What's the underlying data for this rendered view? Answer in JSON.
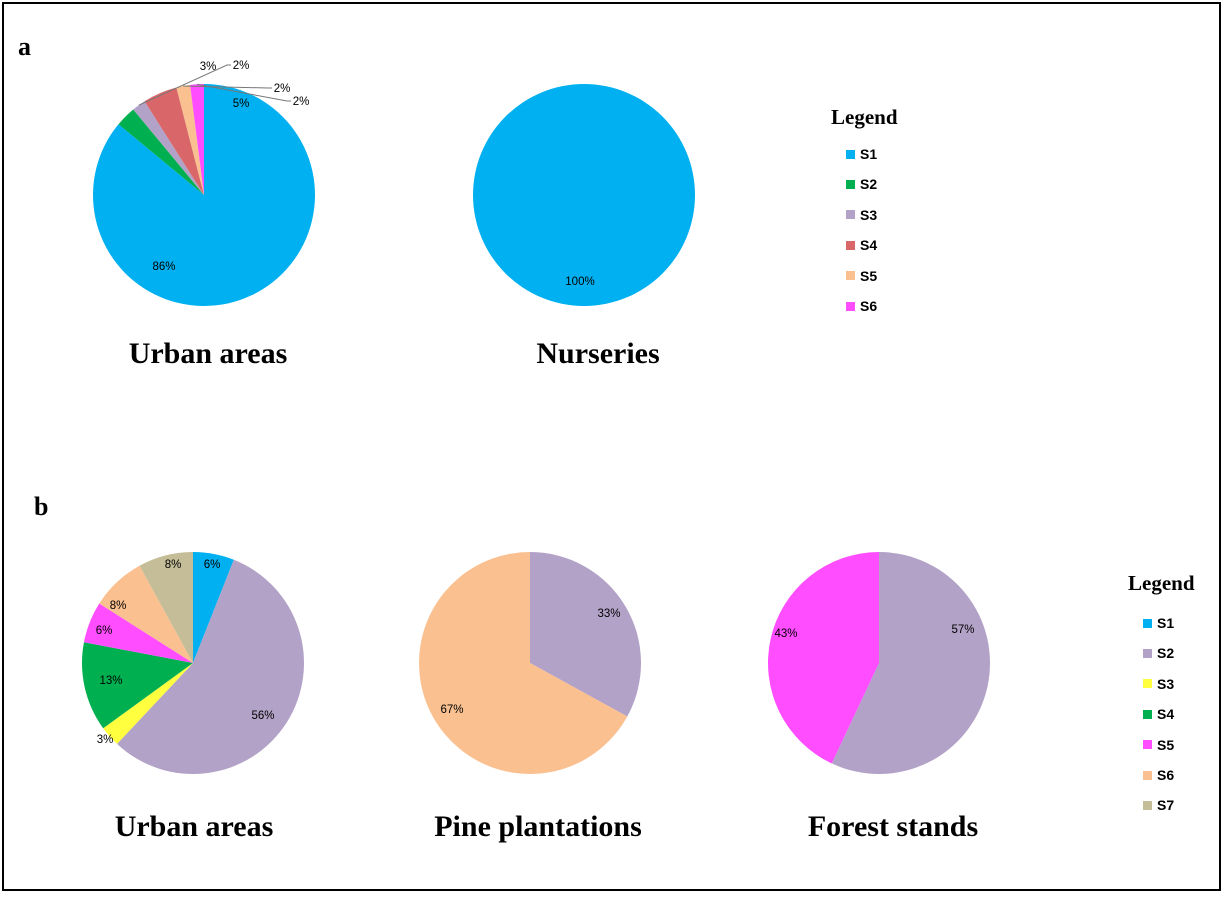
{
  "panels": [
    {
      "letter": "a"
    },
    {
      "letter": "b"
    }
  ],
  "legends": [
    {
      "title": "Legend",
      "items": [
        "S1",
        "S2",
        "S3",
        "S4",
        "S5",
        "S6"
      ],
      "colors": [
        "#00b0f0",
        "#00b050",
        "#b3a2c7",
        "#d9676a",
        "#fac090",
        "#ff4dff"
      ]
    },
    {
      "title": "Legend",
      "items": [
        "S1",
        "S2",
        "S3",
        "S4",
        "S5",
        "S6",
        "S7"
      ],
      "colors": [
        "#00b0f0",
        "#b3a2c7",
        "#ffff40",
        "#00b050",
        "#ff4dff",
        "#fac090",
        "#c4bd97"
      ]
    }
  ],
  "chart_data": [
    {
      "type": "pie",
      "title": "Urban areas",
      "panel": "a",
      "labels": [
        "S1",
        "S2",
        "S3",
        "S4",
        "S5",
        "S6"
      ],
      "values": [
        86,
        3,
        2,
        5,
        2,
        2
      ],
      "value_labels": [
        "86%",
        "3%",
        "2%",
        "5%",
        "2%",
        "2%"
      ],
      "colors": [
        "#00b0f0",
        "#00b050",
        "#b3a2c7",
        "#d9676a",
        "#fac090",
        "#ff4dff"
      ]
    },
    {
      "type": "pie",
      "title": "Nurseries",
      "panel": "a",
      "labels": [
        "S1"
      ],
      "values": [
        100
      ],
      "value_labels": [
        "100%"
      ],
      "colors": [
        "#00b0f0"
      ]
    },
    {
      "type": "pie",
      "title": "Urban areas",
      "panel": "b",
      "labels": [
        "S1",
        "S2",
        "S3",
        "S4",
        "S5",
        "S6",
        "S7"
      ],
      "values": [
        6,
        56,
        3,
        13,
        6,
        8,
        8
      ],
      "value_labels": [
        "6%",
        "56%",
        "3%",
        "13%",
        "6%",
        "8%",
        "8%"
      ],
      "colors": [
        "#00b0f0",
        "#b3a2c7",
        "#ffff40",
        "#00b050",
        "#ff4dff",
        "#fac090",
        "#c4bd97"
      ]
    },
    {
      "type": "pie",
      "title": "Pine plantations",
      "panel": "b",
      "labels": [
        "S2",
        "S6"
      ],
      "values": [
        33,
        67
      ],
      "value_labels": [
        "33%",
        "67%"
      ],
      "colors": [
        "#b3a2c7",
        "#fac090"
      ]
    },
    {
      "type": "pie",
      "title": "Forest stands",
      "panel": "b",
      "labels": [
        "S2",
        "S5"
      ],
      "values": [
        57,
        43
      ],
      "value_labels": [
        "57%",
        "43%"
      ],
      "colors": [
        "#b3a2c7",
        "#ff4dff"
      ]
    }
  ]
}
